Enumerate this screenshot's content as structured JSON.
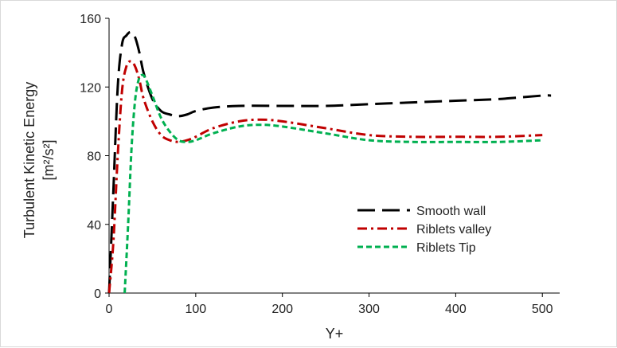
{
  "chart_data": {
    "type": "line",
    "title": "",
    "xlabel": "Y+",
    "ylabel_line1": "Turbulent Kinetic Energy",
    "ylabel_line2": "[m²/s²]",
    "xlim": [
      0,
      520
    ],
    "ylim": [
      0,
      160
    ],
    "xticks": [
      0,
      100,
      200,
      300,
      400,
      500
    ],
    "yticks": [
      0,
      40,
      80,
      120,
      160
    ],
    "grid": false,
    "legend_position": "right",
    "series": [
      {
        "name": "Smooth wall",
        "color": "#000000",
        "dash": "long-dash",
        "x": [
          0,
          5,
          10,
          15,
          20,
          25,
          30,
          35,
          40,
          50,
          60,
          70,
          80,
          90,
          100,
          120,
          150,
          200,
          250,
          300,
          350,
          400,
          450,
          500,
          510
        ],
        "y": [
          0,
          60,
          120,
          145,
          150,
          152,
          149,
          140,
          128,
          113,
          106,
          104,
          103,
          104,
          106,
          108,
          109,
          109,
          109,
          110,
          111,
          112,
          113,
          115,
          115
        ]
      },
      {
        "name": "Riblets valley",
        "color": "#c00000",
        "dash": "dash-dot",
        "x": [
          0,
          5,
          10,
          15,
          20,
          25,
          30,
          35,
          40,
          50,
          60,
          70,
          80,
          90,
          100,
          120,
          150,
          175,
          200,
          250,
          300,
          350,
          400,
          450,
          500
        ],
        "y": [
          0,
          30,
          80,
          118,
          132,
          135,
          132,
          124,
          113,
          100,
          92,
          89,
          88,
          89,
          91,
          96,
          100,
          101,
          100,
          96,
          92,
          91,
          91,
          91,
          92
        ]
      },
      {
        "name": "Riblets Tip",
        "color": "#00b050",
        "dash": "short-dash",
        "x": [
          18,
          22,
          26,
          30,
          34,
          38,
          42,
          50,
          60,
          70,
          80,
          90,
          100,
          120,
          150,
          175,
          200,
          250,
          300,
          350,
          400,
          450,
          500
        ],
        "y": [
          0,
          40,
          85,
          112,
          124,
          127,
          125,
          115,
          102,
          94,
          89,
          88,
          89,
          93,
          97,
          98,
          97,
          93,
          89,
          88,
          88,
          88,
          89
        ]
      }
    ]
  }
}
